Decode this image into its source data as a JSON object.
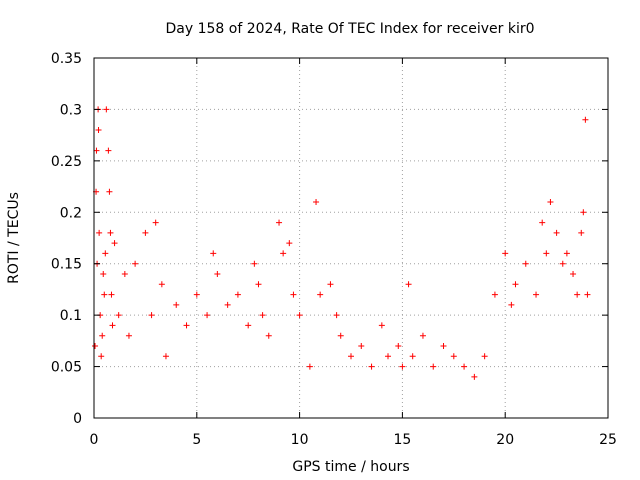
{
  "chart_data": {
    "type": "scatter",
    "title": "Day 158 of 2024, Rate Of TEC Index for receiver kir0",
    "xlabel": "GPS time / hours",
    "ylabel": "ROTI / TECUs",
    "xlim": [
      0,
      25
    ],
    "ylim": [
      0,
      0.35
    ],
    "x_ticks": [
      "0",
      "5",
      "10",
      "15",
      "20",
      "25"
    ],
    "y_ticks": [
      "0",
      "0.05",
      "0.1",
      "0.15",
      "0.2",
      "0.25",
      "0.3",
      "0.35"
    ],
    "grid": true,
    "legend": "none",
    "marker": "+",
    "marker_color": "#ff0000",
    "series": [
      {
        "x": [
          0.05,
          0.1,
          0.12,
          0.15,
          0.2,
          0.22,
          0.25,
          0.3,
          0.35,
          0.4,
          0.45,
          0.5,
          0.55,
          0.6,
          0.7,
          0.75,
          0.8,
          0.85,
          0.9,
          1.0,
          1.2,
          1.5,
          1.7,
          2.0,
          2.5,
          2.8,
          3.0,
          3.3,
          3.5,
          4.0,
          4.5,
          5.0,
          5.5,
          5.8,
          6.0,
          6.5,
          7.0,
          7.5,
          7.8,
          8.0,
          8.2,
          8.5,
          9.0,
          9.2,
          9.5,
          9.7,
          10.0,
          10.5,
          10.8,
          11.0,
          11.5,
          11.8,
          12.0,
          12.5,
          13.0,
          13.5,
          14.0,
          14.3,
          14.8,
          15.0,
          15.3,
          15.5,
          16.0,
          16.5,
          17.0,
          17.5,
          18.0,
          18.5,
          19.0,
          19.5,
          20.0,
          20.3,
          20.5,
          21.0,
          21.5,
          21.8,
          22.0,
          22.2,
          22.5,
          22.8,
          23.0,
          23.3,
          23.5,
          23.7,
          23.8,
          23.9,
          24.0
        ],
        "y": [
          0.07,
          0.22,
          0.26,
          0.15,
          0.3,
          0.28,
          0.18,
          0.1,
          0.06,
          0.08,
          0.14,
          0.12,
          0.16,
          0.3,
          0.26,
          0.22,
          0.18,
          0.12,
          0.09,
          0.17,
          0.1,
          0.14,
          0.08,
          0.15,
          0.18,
          0.1,
          0.19,
          0.13,
          0.06,
          0.11,
          0.09,
          0.12,
          0.1,
          0.16,
          0.14,
          0.11,
          0.12,
          0.09,
          0.15,
          0.13,
          0.1,
          0.08,
          0.19,
          0.16,
          0.17,
          0.12,
          0.1,
          0.05,
          0.21,
          0.12,
          0.13,
          0.1,
          0.08,
          0.06,
          0.07,
          0.05,
          0.09,
          0.06,
          0.07,
          0.05,
          0.13,
          0.06,
          0.08,
          0.05,
          0.07,
          0.06,
          0.05,
          0.04,
          0.06,
          0.12,
          0.16,
          0.11,
          0.13,
          0.15,
          0.12,
          0.19,
          0.16,
          0.21,
          0.18,
          0.15,
          0.16,
          0.14,
          0.12,
          0.18,
          0.2,
          0.29,
          0.12
        ]
      }
    ]
  }
}
